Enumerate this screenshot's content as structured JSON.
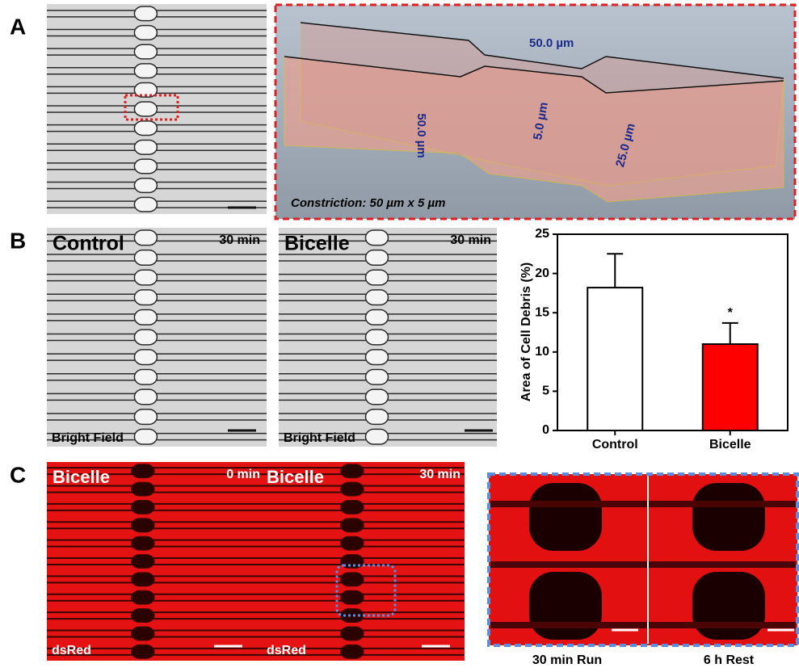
{
  "panels": {
    "A": {
      "label": "A",
      "dimensions": {
        "top_width": "50.0 µm",
        "depth": "5.0 µm",
        "length": "50.0 µm",
        "width": "25.0 µm"
      },
      "caption": "Constriction: 50 µm x 5 µm"
    },
    "B": {
      "label": "B",
      "images": [
        {
          "title": "Control",
          "time": "30 min",
          "mode": "Bright Field"
        },
        {
          "title": "Bicelle",
          "time": "30 min",
          "mode": "Bright Field"
        }
      ]
    },
    "C": {
      "label": "C",
      "images": [
        {
          "title": "Bicelle",
          "time": "0 min",
          "channel": "dsRed"
        },
        {
          "title": "Bicelle",
          "time": "30 min",
          "channel": "dsRed"
        }
      ],
      "inset_labels": [
        "30 min Run",
        "6 h Rest"
      ]
    }
  },
  "chart_data": {
    "type": "bar",
    "ylabel": "Area of Cell Debris (%)",
    "categories": [
      "Control",
      "Bicelle"
    ],
    "values": [
      18.2,
      11.0
    ],
    "errors": [
      4.3,
      2.7
    ],
    "colors": [
      "#ffffff",
      "#ff0000"
    ],
    "ylim": [
      0,
      25
    ],
    "yticks": [
      0,
      5,
      10,
      15,
      20,
      25
    ],
    "annotations": [
      {
        "text": "*",
        "category": "Bicelle"
      }
    ]
  }
}
